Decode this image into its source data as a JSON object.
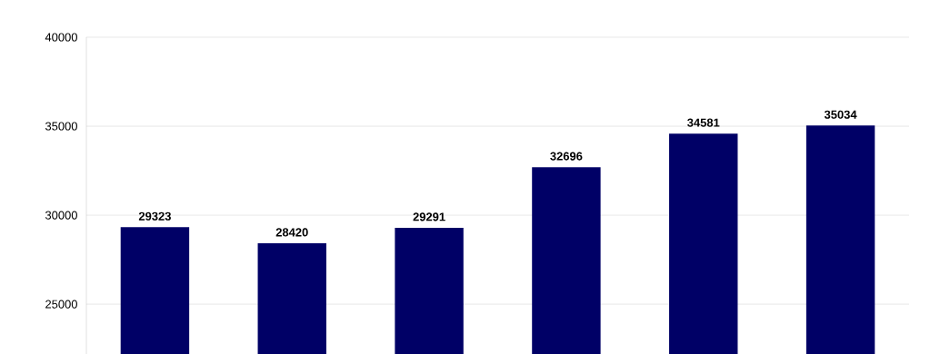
{
  "chart_data": {
    "type": "bar",
    "categories": [
      null,
      null,
      null,
      null,
      null,
      null
    ],
    "values": [
      29323,
      28420,
      29291,
      32696,
      34581,
      35034
    ],
    "color": "#000066",
    "ylim": [
      22200,
      40000
    ],
    "yticks": [
      25000,
      30000,
      35000,
      40000
    ],
    "grid": "y",
    "data_labels": true
  }
}
